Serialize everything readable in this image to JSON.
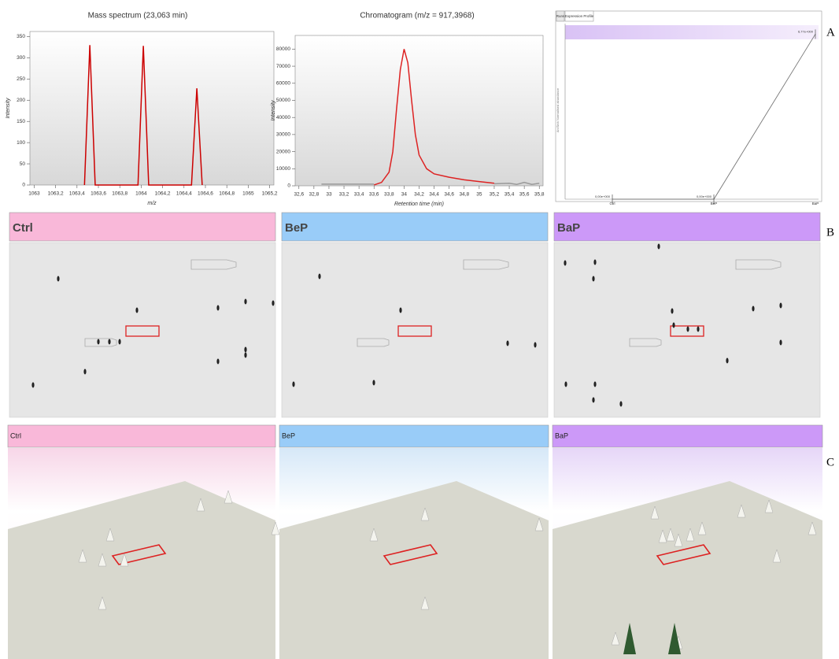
{
  "chart_data": [
    {
      "type": "line",
      "title": "Mass spectrum (23,063 min)",
      "x_label": "m/z",
      "y_label": "Intensity",
      "x": [
        1063.47,
        1063.52,
        1063.57,
        1063.97,
        1064.02,
        1064.07,
        1064.47,
        1064.52,
        1064.57
      ],
      "series": [
        {
          "color": "#cc0000",
          "values": [
            0,
            330,
            0,
            0,
            328,
            0,
            0,
            228,
            0
          ]
        }
      ],
      "xlim": [
        1062.96,
        1065.24
      ],
      "xticks": [
        1063,
        {
          "value": 1063.2,
          "label": "1063,2"
        },
        {
          "value": 1063.4,
          "label": "1063,4"
        },
        {
          "value": 1063.6,
          "label": "1063,6"
        },
        {
          "value": 1063.8,
          "label": "1063,8"
        },
        1064,
        {
          "value": 1064.2,
          "label": "1064,2"
        },
        {
          "value": 1064.4,
          "label": "1064,4"
        },
        {
          "value": 1064.6,
          "label": "1064,6"
        },
        {
          "value": 1064.8,
          "label": "1064,8"
        },
        1065,
        {
          "value": 1065.2,
          "label": "1065,2"
        }
      ],
      "ylim": [
        0,
        362
      ],
      "yticks": [
        0,
        50,
        100,
        150,
        200,
        250,
        300,
        350
      ]
    },
    {
      "type": "line",
      "title": "Chromatogram (m/z = 917,3968)",
      "x_label": "Retention time (min)",
      "y_label": "Intensity",
      "x": [
        32.9,
        33.2,
        33.5,
        33.6,
        33.7,
        33.8,
        33.85,
        33.9,
        33.95,
        34.0,
        34.05,
        34.1,
        34.15,
        34.2,
        34.3,
        34.4,
        34.6,
        34.8,
        35.0,
        35.2,
        35.4,
        35.5,
        35.6,
        35.7,
        35.8
      ],
      "series": [
        {
          "color": "#999999",
          "values": [
            1000,
            1000,
            1000,
            1000,
            null,
            null,
            null,
            null,
            null,
            null,
            null,
            null,
            null,
            null,
            null,
            null,
            null,
            null,
            null,
            1200,
            1500,
            800,
            2000,
            800,
            1500
          ]
        },
        {
          "color": "#dd2222",
          "values": [
            null,
            null,
            null,
            500,
            2000,
            8000,
            20000,
            45000,
            68000,
            80000,
            72000,
            50000,
            30000,
            18000,
            10000,
            7000,
            5000,
            3500,
            2500,
            1500,
            null,
            null,
            null,
            null,
            null
          ]
        }
      ],
      "xlim": [
        32.55,
        35.85
      ],
      "xticks": [
        {
          "value": 32.6,
          "label": "32,6"
        },
        {
          "value": 32.8,
          "label": "32,8"
        },
        33,
        {
          "value": 33.2,
          "label": "33,2"
        },
        {
          "value": 33.4,
          "label": "33,4"
        },
        {
          "value": 33.6,
          "label": "33,6"
        },
        {
          "value": 33.8,
          "label": "33,8"
        },
        34,
        {
          "value": 34.2,
          "label": "34,2"
        },
        {
          "value": 34.4,
          "label": "34,4"
        },
        {
          "value": 34.6,
          "label": "34,6"
        },
        {
          "value": 34.8,
          "label": "34,8"
        },
        35,
        {
          "value": 35.2,
          "label": "35,2"
        },
        {
          "value": 35.4,
          "label": "35,4"
        },
        {
          "value": 35.6,
          "label": "35,6"
        },
        {
          "value": 35.8,
          "label": "35,8"
        }
      ],
      "ylim": [
        0,
        88000
      ],
      "yticks": [
        0,
        10000,
        20000,
        30000,
        40000,
        50000,
        60000,
        70000,
        80000
      ]
    },
    {
      "type": "profile",
      "tabs": [
        "Runs",
        "Expression Profile"
      ],
      "y_label": "ArcSinh Normalised abundance",
      "categories": [
        "Ctrl",
        "BeP",
        "BaP"
      ],
      "series": [
        {
          "color": "#777777",
          "values": [
            0,
            0,
            6.77
          ],
          "value_labels": [
            "0,00e+000",
            "0,00e+000",
            "6,77e+000"
          ]
        }
      ],
      "ylim": [
        0,
        7.2
      ]
    }
  ],
  "panels": {
    "letters": [
      "A",
      "B",
      "C"
    ],
    "maps": [
      "Ctrl",
      "BeP",
      "BaP"
    ],
    "views": [
      "Ctrl",
      "BeP",
      "BaP"
    ]
  }
}
